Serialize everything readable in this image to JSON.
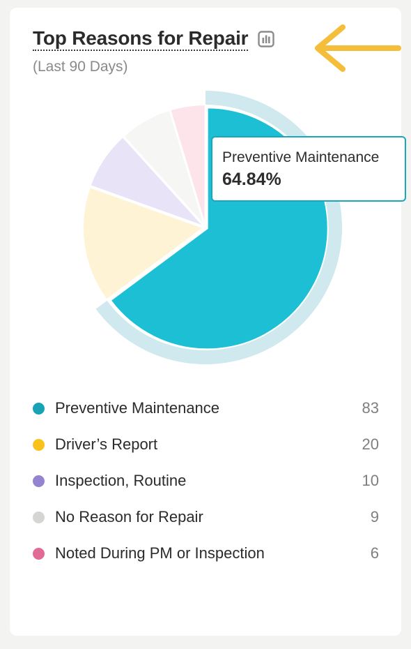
{
  "card": {
    "title": "Top Reasons for Repair",
    "subtitle": "(Last 90 Days)"
  },
  "icons": {
    "report": "bar-chart-report-icon",
    "annotation": "arrow-left-icon"
  },
  "colors": {
    "annotation_arrow": "#f5be3a",
    "highlight_ring": "#cfe9ee",
    "tooltip_border": "#1aa7bd"
  },
  "tooltip": {
    "label": "Preventive Maintenance",
    "value": "64.84%"
  },
  "chart_data": {
    "type": "pie",
    "title": "Top Reasons for Repair",
    "subtitle": "(Last 90 Days)",
    "highlighted": "Preventive Maintenance",
    "categories": [
      "Preventive Maintenance",
      "Driver’s Report",
      "Inspection, Routine",
      "No Reason for Repair",
      "Noted During PM or Inspection"
    ],
    "values": [
      83,
      20,
      10,
      9,
      6
    ],
    "slice_colors": [
      "#1cbfd4",
      "#fff3d6",
      "#e8e3f6",
      "#f6f6f5",
      "#fde4ea"
    ],
    "legend_colors": [
      "#17a3b5",
      "#f8c21a",
      "#9484cf",
      "#d5d5d3",
      "#e06b95"
    ],
    "legend_position": "bottom"
  }
}
